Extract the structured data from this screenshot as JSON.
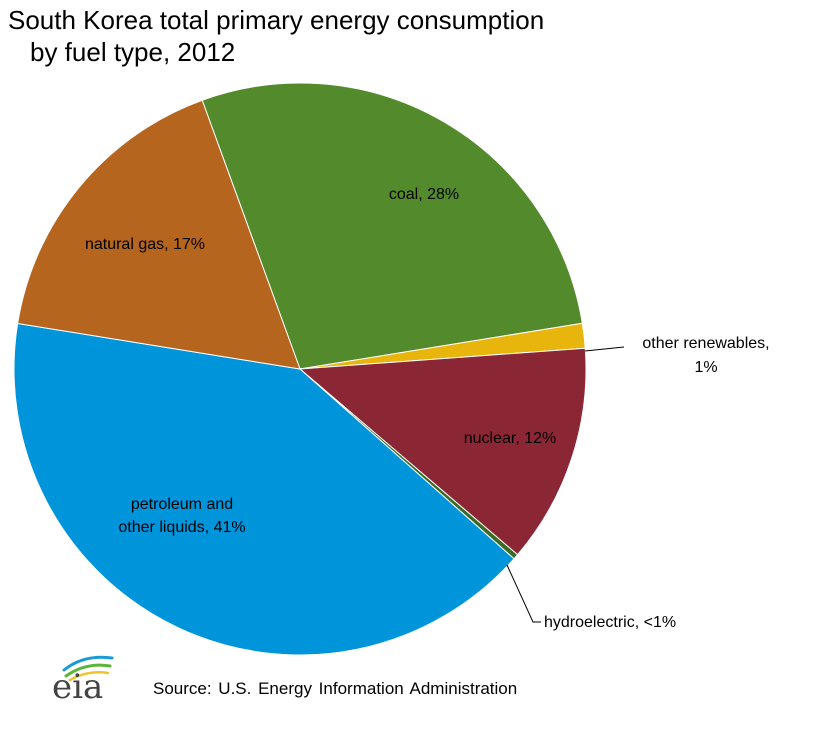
{
  "header": {
    "title_line1": "South Korea total primary energy consumption",
    "title_line2": "by fuel type, 2012"
  },
  "chart_data": {
    "type": "pie",
    "title": "South Korea total primary energy consumption by fuel type, 2012",
    "unit": "percent",
    "slices": [
      {
        "name": "coal",
        "value": 28,
        "label": "coal, 28%",
        "color": "#538a2b"
      },
      {
        "name": "other renewables",
        "value": 1.4,
        "label": "other renewables, 1%",
        "label_line1": "other renewables,",
        "label_line2": "1%",
        "color": "#e8b50c"
      },
      {
        "name": "nuclear",
        "value": 12.4,
        "label": "nuclear, 12%",
        "color": "#8b2635"
      },
      {
        "name": "hydroelectric",
        "value": 0.3,
        "label": "hydroelectric, <1%",
        "color": "#3b6b25"
      },
      {
        "name": "petroleum and other liquids",
        "value": 41,
        "label": "petroleum and other liquids, 41%",
        "label_line1": "petroleum  and",
        "label_line2": "other liquids, 41%",
        "color": "#0095db"
      },
      {
        "name": "natural gas",
        "value": 16.9,
        "label": "natural gas, 17%",
        "color": "#b5651d"
      }
    ]
  },
  "footer": {
    "logo_text": "eia",
    "source": "Source: U.S. Energy Information  Administration"
  }
}
